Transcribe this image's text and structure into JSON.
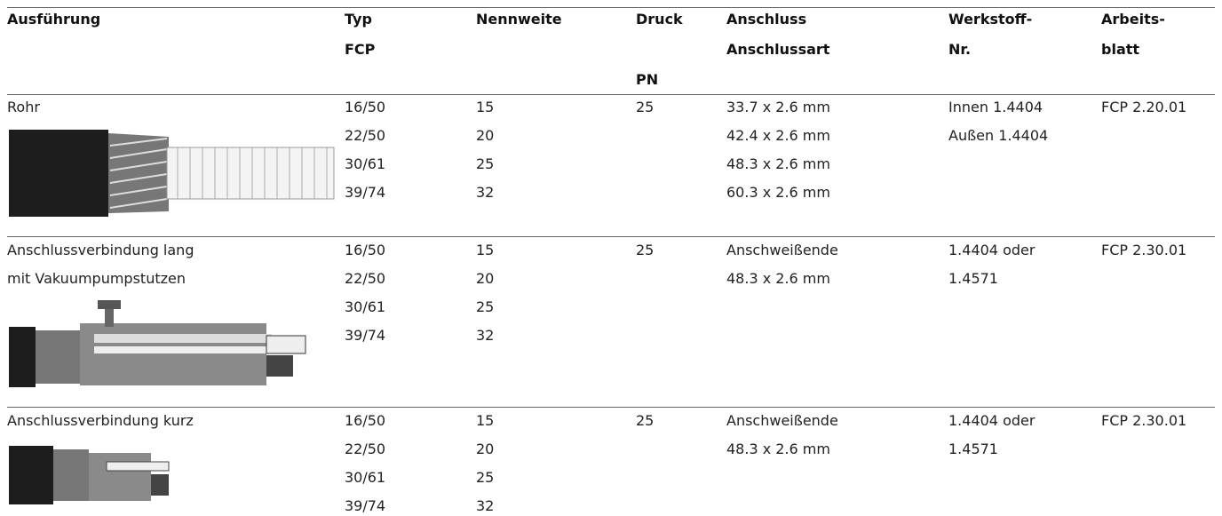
{
  "table": {
    "header": [
      [
        "Ausführung"
      ],
      [
        "Typ",
        "FCP"
      ],
      [
        "Nennweite"
      ],
      [
        "Druck",
        "PN"
      ],
      [
        "Anschluss",
        "Anschlussart"
      ],
      [
        "Werkstoff-",
        "Nr."
      ],
      [
        "Arbeits-",
        "blatt"
      ]
    ],
    "rows": [
      [
        [
          "Rohr"
        ],
        [
          "16/50",
          "22/50",
          "30/61",
          "39/74"
        ],
        [
          "15",
          "20",
          "25",
          "32"
        ],
        [
          "25"
        ],
        [
          "33.7 x 2.6 mm",
          "42.4 x 2.6 mm",
          "48.3 x 2.6 mm",
          "60.3 x 2.6 mm"
        ],
        [
          "Innen 1.4404",
          "Außen 1.4404"
        ],
        [
          "FCP 2.20.01"
        ]
      ],
      [
        [
          "Anschlussverbindung lang",
          "mit Vakuumpumpstutzen"
        ],
        [
          "16/50",
          "22/50",
          "30/61",
          "39/74"
        ],
        [
          "15",
          "20",
          "25",
          "32"
        ],
        [
          "25"
        ],
        [
          "Anschweißende",
          "48.3 x 2.6 mm"
        ],
        [
          "1.4404 oder",
          "1.4571"
        ],
        [
          "FCP 2.30.01"
        ]
      ],
      [
        [
          "Anschlussverbindung kurz"
        ],
        [
          "16/50",
          "22/50",
          "30/61",
          "39/74"
        ],
        [
          "15",
          "20",
          "25",
          "32"
        ],
        [
          "25"
        ],
        [
          "Anschweißende",
          "48.3 x 2.6 mm"
        ],
        [
          "1.4404 oder",
          "1.4571"
        ],
        [
          "FCP 2.30.01"
        ]
      ]
    ]
  }
}
